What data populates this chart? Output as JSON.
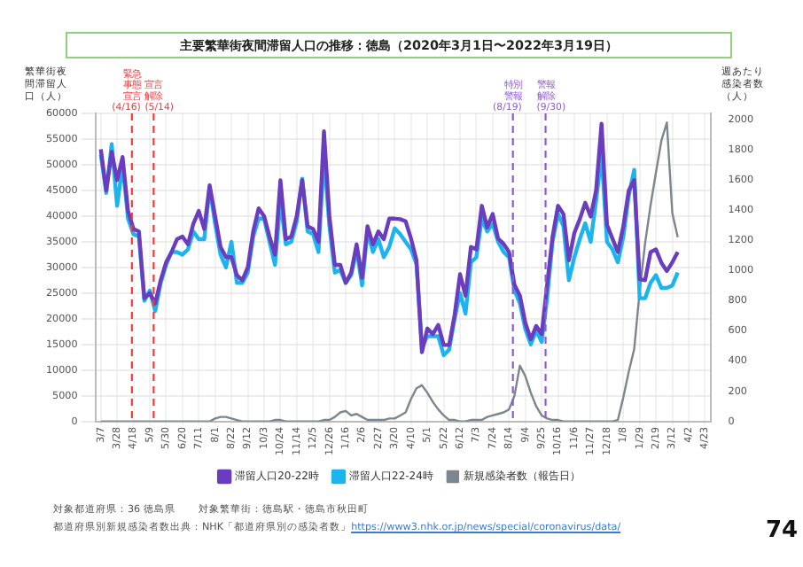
{
  "chart_data": {
    "type": "line",
    "title": "主要繁華街夜間滞留人口の推移：徳島（2020年3月1日〜2022年3月19日）",
    "ylabel": "繁華街夜間滞留人口（人）",
    "y2label": "週あたり感染者数（人）",
    "x": [
      "2020-03-07",
      "2020-03-14",
      "2020-03-21",
      "2020-03-28",
      "2020-04-04",
      "2020-04-11",
      "2020-04-18",
      "2020-04-25",
      "2020-05-02",
      "2020-05-09",
      "2020-05-16",
      "2020-05-23",
      "2020-05-30",
      "2020-06-06",
      "2020-06-13",
      "2020-06-20",
      "2020-06-27",
      "2020-07-04",
      "2020-07-11",
      "2020-07-18",
      "2020-07-25",
      "2020-08-01",
      "2020-08-08",
      "2020-08-15",
      "2020-08-22",
      "2020-08-29",
      "2020-09-05",
      "2020-09-12",
      "2020-09-19",
      "2020-09-26",
      "2020-10-03",
      "2020-10-10",
      "2020-10-17",
      "2020-10-24",
      "2020-10-31",
      "2020-11-07",
      "2020-11-14",
      "2020-11-21",
      "2020-11-28",
      "2020-12-05",
      "2020-12-12",
      "2020-12-19",
      "2020-12-26",
      "2021-01-02",
      "2021-01-09",
      "2021-01-16",
      "2021-01-23",
      "2021-01-30",
      "2021-02-06",
      "2021-02-13",
      "2021-02-20",
      "2021-02-27",
      "2021-03-06",
      "2021-03-13",
      "2021-03-20",
      "2021-03-27",
      "2021-04-03",
      "2021-04-10",
      "2021-04-17",
      "2021-04-24",
      "2021-05-01",
      "2021-05-08",
      "2021-05-15",
      "2021-05-22",
      "2021-05-29",
      "2021-06-05",
      "2021-06-12",
      "2021-06-19",
      "2021-06-26",
      "2021-07-03",
      "2021-07-10",
      "2021-07-17",
      "2021-07-24",
      "2021-07-31",
      "2021-08-07",
      "2021-08-14",
      "2021-08-21",
      "2021-08-28",
      "2021-09-04",
      "2021-09-11",
      "2021-09-18",
      "2021-09-25",
      "2021-10-02",
      "2021-10-09",
      "2021-10-16",
      "2021-10-23",
      "2021-10-30",
      "2021-11-06",
      "2021-11-13",
      "2021-11-20",
      "2021-11-27",
      "2021-12-04",
      "2021-12-11",
      "2021-12-18",
      "2021-12-25",
      "2022-01-01",
      "2022-01-08",
      "2022-01-15",
      "2022-01-22",
      "2022-01-29",
      "2022-02-05",
      "2022-02-12",
      "2022-02-19",
      "2022-02-26",
      "2022-03-05",
      "2022-03-12",
      "2022-03-19"
    ],
    "series": [
      {
        "name": "滞留人口20-22時",
        "color": "#6a3dbf",
        "values": [
          53000,
          45000,
          52500,
          47000,
          51500,
          41000,
          37500,
          37000,
          24000,
          25000,
          23000,
          27500,
          31000,
          33000,
          35500,
          36000,
          34500,
          38500,
          41000,
          37500,
          46000,
          40000,
          34000,
          32000,
          32000,
          28500,
          27500,
          30000,
          37000,
          41500,
          40000,
          36000,
          32500,
          47000,
          35500,
          36000,
          40000,
          47000,
          38000,
          37500,
          35000,
          56500,
          40000,
          30500,
          30500,
          27000,
          29000,
          34500,
          28000,
          38000,
          34500,
          37000,
          35500,
          39500,
          39500,
          39400,
          39000,
          35600,
          31400,
          13500,
          18100,
          17000,
          18800,
          14900,
          14900,
          20700,
          28700,
          24500,
          34000,
          33500,
          42000,
          37800,
          40400,
          35600,
          34600,
          33000,
          26600,
          24500,
          19200,
          16000,
          18600,
          17000,
          26600,
          36000,
          42000,
          40400,
          31400,
          36700,
          39400,
          42600,
          39900,
          45000,
          58000,
          38300,
          35600,
          33000,
          38000,
          45000,
          47000,
          27700,
          27500,
          33000,
          33500,
          30900,
          29300,
          31000,
          33000
        ]
      },
      {
        "name": "滞留人口22-24時",
        "color": "#1cb4ef",
        "values": [
          52000,
          44500,
          54000,
          42000,
          50000,
          39500,
          36500,
          36000,
          23500,
          25500,
          21500,
          27000,
          30500,
          33000,
          33000,
          32500,
          33500,
          37000,
          35500,
          35500,
          45500,
          38500,
          32500,
          30000,
          35000,
          27000,
          27000,
          29000,
          36000,
          39500,
          39500,
          35000,
          30500,
          43000,
          34500,
          35000,
          39000,
          47300,
          37000,
          36500,
          33000,
          52000,
          38000,
          29000,
          29500,
          27000,
          28500,
          33500,
          26500,
          37000,
          33000,
          35500,
          32000,
          34000,
          37600,
          36500,
          35000,
          33500,
          30600,
          14500,
          16600,
          16600,
          16600,
          12900,
          14000,
          20000,
          25000,
          21000,
          31000,
          32000,
          39500,
          37000,
          38500,
          35000,
          33000,
          32000,
          25500,
          23000,
          18000,
          15000,
          17700,
          15500,
          24000,
          35000,
          40500,
          38000,
          27500,
          32000,
          35500,
          38600,
          35000,
          43000,
          52000,
          35000,
          33500,
          31000,
          36000,
          44000,
          49000,
          24000,
          24000,
          27000,
          28500,
          26000,
          26000,
          26500,
          29000
        ]
      },
      {
        "name": "新規感染者数（報告日）",
        "axis": "y2",
        "color": "#7d858e",
        "values": [
          0,
          0,
          0,
          0,
          0,
          0,
          0,
          0,
          0,
          0,
          0,
          0,
          0,
          0,
          0,
          0,
          0,
          0,
          0,
          0,
          0,
          20,
          30,
          30,
          20,
          10,
          0,
          0,
          0,
          0,
          0,
          0,
          10,
          10,
          0,
          0,
          0,
          0,
          0,
          0,
          0,
          10,
          10,
          30,
          60,
          70,
          40,
          50,
          30,
          10,
          10,
          10,
          10,
          20,
          20,
          40,
          60,
          150,
          220,
          240,
          190,
          130,
          80,
          40,
          10,
          10,
          0,
          0,
          10,
          10,
          10,
          30,
          40,
          50,
          60,
          80,
          170,
          370,
          300,
          190,
          100,
          40,
          20,
          10,
          10,
          0,
          0,
          0,
          0,
          0,
          0,
          0,
          0,
          0,
          0,
          10,
          160,
          330,
          480,
          860,
          1180,
          1430,
          1650,
          1860,
          1980,
          1380,
          1220
        ]
      }
    ],
    "xlim": [
      "2020-02-29",
      "2022-04-30"
    ],
    "xticks": [
      {
        "value": "2020-03-07",
        "label": "3/7"
      },
      {
        "value": "2020-03-28",
        "label": "3/28"
      },
      {
        "value": "2020-04-18",
        "label": "4/18"
      },
      {
        "value": "2020-05-09",
        "label": "5/9"
      },
      {
        "value": "2020-05-30",
        "label": "5/30"
      },
      {
        "value": "2020-06-20",
        "label": "6/20"
      },
      {
        "value": "2020-07-11",
        "label": "7/11"
      },
      {
        "value": "2020-08-01",
        "label": "8/1"
      },
      {
        "value": "2020-08-22",
        "label": "8/22"
      },
      {
        "value": "2020-09-12",
        "label": "9/12"
      },
      {
        "value": "2020-10-03",
        "label": "10/3"
      },
      {
        "value": "2020-10-24",
        "label": "10/24"
      },
      {
        "value": "2020-11-14",
        "label": "11/14"
      },
      {
        "value": "2020-12-05",
        "label": "12/5"
      },
      {
        "value": "2020-12-26",
        "label": "12/26"
      },
      {
        "value": "2021-01-16",
        "label": "1/16"
      },
      {
        "value": "2021-02-06",
        "label": "2/6"
      },
      {
        "value": "2021-02-27",
        "label": "2/27"
      },
      {
        "value": "2021-03-20",
        "label": "3/20"
      },
      {
        "value": "2021-04-10",
        "label": "4/10"
      },
      {
        "value": "2021-05-01",
        "label": "5/1"
      },
      {
        "value": "2021-05-22",
        "label": "5/22"
      },
      {
        "value": "2021-06-12",
        "label": "6/12"
      },
      {
        "value": "2021-07-03",
        "label": "7/3"
      },
      {
        "value": "2021-07-24",
        "label": "7/24"
      },
      {
        "value": "2021-08-14",
        "label": "8/14"
      },
      {
        "value": "2021-09-04",
        "label": "9/4"
      },
      {
        "value": "2021-09-25",
        "label": "9/25"
      },
      {
        "value": "2021-10-16",
        "label": "10/16"
      },
      {
        "value": "2021-11-06",
        "label": "11/6"
      },
      {
        "value": "2021-11-27",
        "label": "11/27"
      },
      {
        "value": "2021-12-18",
        "label": "12/18"
      },
      {
        "value": "2022-01-08",
        "label": "1/8"
      },
      {
        "value": "2022-01-29",
        "label": "1/29"
      },
      {
        "value": "2022-02-19",
        "label": "2/19"
      },
      {
        "value": "2022-03-12",
        "label": "3/12"
      },
      {
        "value": "2022-04-02",
        "label": "4/2"
      },
      {
        "value": "2022-04-23",
        "label": "4/23"
      }
    ],
    "ylim": [
      0,
      60000
    ],
    "yticks": [
      0,
      5000,
      10000,
      15000,
      20000,
      25000,
      30000,
      35000,
      40000,
      45000,
      50000,
      55000,
      60000
    ],
    "y2lim": [
      0,
      2040
    ],
    "y2ticks": [
      0,
      200,
      400,
      600,
      800,
      1000,
      1200,
      1400,
      1600,
      1800,
      2000
    ],
    "ref_lines": [
      {
        "axis": "x",
        "value": "2020-04-16",
        "label": "緊急事態宣言(4/16)",
        "color": "#f23b3b",
        "line_style": "dashed"
      },
      {
        "axis": "x",
        "value": "2020-05-14",
        "label": "宣言解除(5/14)",
        "color": "#f23b3b",
        "line_style": "dashed"
      },
      {
        "axis": "x",
        "value": "2021-08-19",
        "label": "特別警報(8/19)",
        "color": "#8d5cd0",
        "line_style": "dashed"
      },
      {
        "axis": "x",
        "value": "2021-09-30",
        "label": "警報解除(9/30)",
        "color": "#8d5cd0",
        "line_style": "dashed"
      }
    ],
    "annotations": [
      "対象都道府県：36 徳島県",
      "対象繁華街：徳島駅・徳島市秋田町",
      "都道府県別新規感染者数出典：NHK「都道府県別の感染者数」https://www3.nhk.or.jp/news/special/coronavirus/data/",
      "74"
    ],
    "grid": true,
    "legend": "bottom",
    "marker": "none"
  }
}
